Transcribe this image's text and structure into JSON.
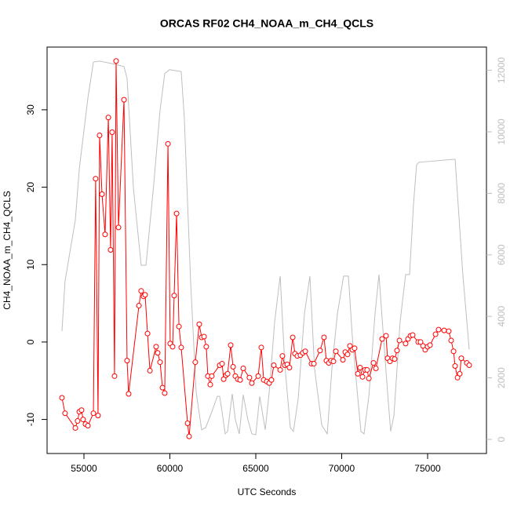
{
  "chart_data": {
    "type": "line",
    "title": "ORCAS RF02 CH4_NOAA_m_CH4_QCLS",
    "xlabel": "UTC Seconds",
    "ylabel": "CH4_NOAA_m_CH4_QCLS",
    "xlim": [
      52854,
      78425
    ],
    "xticks": [
      55000,
      60000,
      65000,
      70000,
      75000
    ],
    "ylim": [
      -14.4,
      38.1
    ],
    "yticks": [
      -10,
      0,
      10,
      20,
      30
    ],
    "y2lim": [
      -459,
      12755
    ],
    "y2ticks": [
      0,
      2000,
      4000,
      6000,
      8000,
      10000,
      12000
    ],
    "series": [
      {
        "color": "#bebebe",
        "axis": "y2",
        "markers": false,
        "x": [
          53720,
          53900,
          54500,
          54730,
          55230,
          55550,
          55910,
          56870,
          57330,
          57510,
          57880,
          58330,
          58610,
          59060,
          59430,
          59700,
          59980,
          60660,
          60840,
          61210,
          61530,
          61850,
          62080,
          62440,
          62760,
          62900,
          63040,
          63220,
          63360,
          63630,
          63810,
          64040,
          64270,
          64540,
          64770,
          65000,
          65230,
          65550,
          65780,
          66100,
          66420,
          66690,
          67010,
          67190,
          67470,
          67830,
          68150,
          68420,
          68840,
          69160,
          69430,
          69750,
          70110,
          70390,
          70620,
          70940,
          71120,
          71300,
          71580,
          71940,
          72170,
          72400,
          72670,
          72850,
          73040,
          73400,
          73720,
          73950,
          74180,
          74360,
          74500,
          76600,
          77050,
          77420
        ],
        "values": [
          3520,
          5150,
          7140,
          8800,
          11100,
          12270,
          12300,
          12190,
          12120,
          11730,
          8160,
          5660,
          5660,
          8290,
          10710,
          11890,
          12020,
          11960,
          10460,
          5100,
          1530,
          310,
          380,
          890,
          1400,
          1400,
          890,
          180,
          260,
          1480,
          640,
          180,
          1450,
          640,
          180,
          150,
          1400,
          310,
          1530,
          3830,
          5310,
          2420,
          380,
          260,
          1330,
          4080,
          5310,
          2300,
          460,
          180,
          2300,
          4080,
          5310,
          5310,
          3320,
          1330,
          260,
          180,
          1400,
          4080,
          5360,
          3570,
          1530,
          260,
          770,
          3830,
          5360,
          5360,
          7650,
          8930,
          9010,
          9110,
          5360,
          2930
        ]
      },
      {
        "color": "#ff0000",
        "markers": true,
        "x": [
          53720,
          53900,
          54500,
          54630,
          54730,
          54860,
          54950,
          55090,
          55230,
          55550,
          55680,
          55820,
          55910,
          56050,
          56230,
          56420,
          56550,
          56640,
          56780,
          56870,
          57010,
          57330,
          57510,
          57600,
          58200,
          58330,
          58470,
          58560,
          58700,
          58840,
          59200,
          59290,
          59430,
          59570,
          59700,
          59890,
          60020,
          60160,
          60250,
          60390,
          60530,
          60660,
          61030,
          61120,
          61480,
          61710,
          61850,
          61990,
          62120,
          62210,
          62350,
          62440,
          62900,
          63040,
          63130,
          63260,
          63360,
          63540,
          63680,
          63810,
          63950,
          64090,
          64270,
          64630,
          64770,
          65140,
          65320,
          65460,
          65640,
          65780,
          65910,
          66050,
          66420,
          66550,
          66690,
          66830,
          66960,
          67150,
          67280,
          67420,
          67600,
          67740,
          67880,
          68240,
          68380,
          68740,
          68970,
          69110,
          69250,
          69380,
          69520,
          69660,
          70070,
          70210,
          70340,
          70480,
          70620,
          70750,
          70940,
          71070,
          71210,
          71350,
          71480,
          71580,
          71850,
          71990,
          72350,
          72580,
          72670,
          72810,
          72950,
          73080,
          73220,
          73360,
          73720,
          73860,
          74000,
          74130,
          74450,
          74590,
          74730,
          74860,
          75000,
          75140,
          75460,
          75640,
          75960,
          76230,
          76370,
          76510,
          76600,
          76740,
          76870,
          76960,
          77280,
          77420
        ],
        "values": [
          -7.2,
          -9.2,
          -11.1,
          -10.2,
          -9.0,
          -8.8,
          -10.0,
          -10.6,
          -10.8,
          -9.2,
          21.1,
          -9.5,
          26.7,
          19.1,
          13.9,
          29.0,
          11.9,
          27.1,
          -4.4,
          36.3,
          14.8,
          31.3,
          -2.4,
          -6.7,
          4.7,
          6.6,
          5.9,
          6.1,
          1.1,
          -3.7,
          -0.6,
          -1.4,
          -2.6,
          -5.9,
          -6.6,
          25.6,
          -0.2,
          -0.6,
          6.0,
          16.6,
          2.0,
          -0.7,
          -10.5,
          -12.2,
          -2.6,
          2.3,
          0.6,
          0.7,
          -0.6,
          -4.4,
          -5.5,
          -4.4,
          -3.0,
          -2.8,
          -4.8,
          -4.3,
          -4.1,
          -0.4,
          -3.2,
          -4.4,
          -4.8,
          -4.9,
          -3.4,
          -4.6,
          -5.3,
          -4.4,
          -0.7,
          -4.9,
          -5.1,
          -5.3,
          -4.9,
          -3.0,
          -3.6,
          -1.8,
          -3.0,
          -2.9,
          -3.3,
          0.6,
          -1.5,
          -1.8,
          -1.7,
          -1.4,
          -1.2,
          -2.8,
          -2.8,
          -1.1,
          0.6,
          -2.4,
          -2.7,
          -2.4,
          -2.5,
          -1.2,
          -2.3,
          -1.3,
          -1.6,
          -0.5,
          -1.0,
          -0.8,
          -4.1,
          -3.3,
          -4.5,
          -3.6,
          -3.6,
          -4.7,
          -2.7,
          -3.4,
          0.4,
          0.8,
          -2.1,
          -2.5,
          -2.1,
          -2.2,
          -1.1,
          0.2,
          -0.2,
          0.4,
          0.8,
          0.9,
          0.0,
          0.0,
          -0.5,
          -1.0,
          -0.6,
          -0.4,
          1.0,
          1.6,
          1.5,
          1.4,
          0.2,
          -1.2,
          -3.1,
          -4.6,
          -4.1,
          -2.1,
          -2.7,
          -3.0
        ]
      }
    ]
  }
}
